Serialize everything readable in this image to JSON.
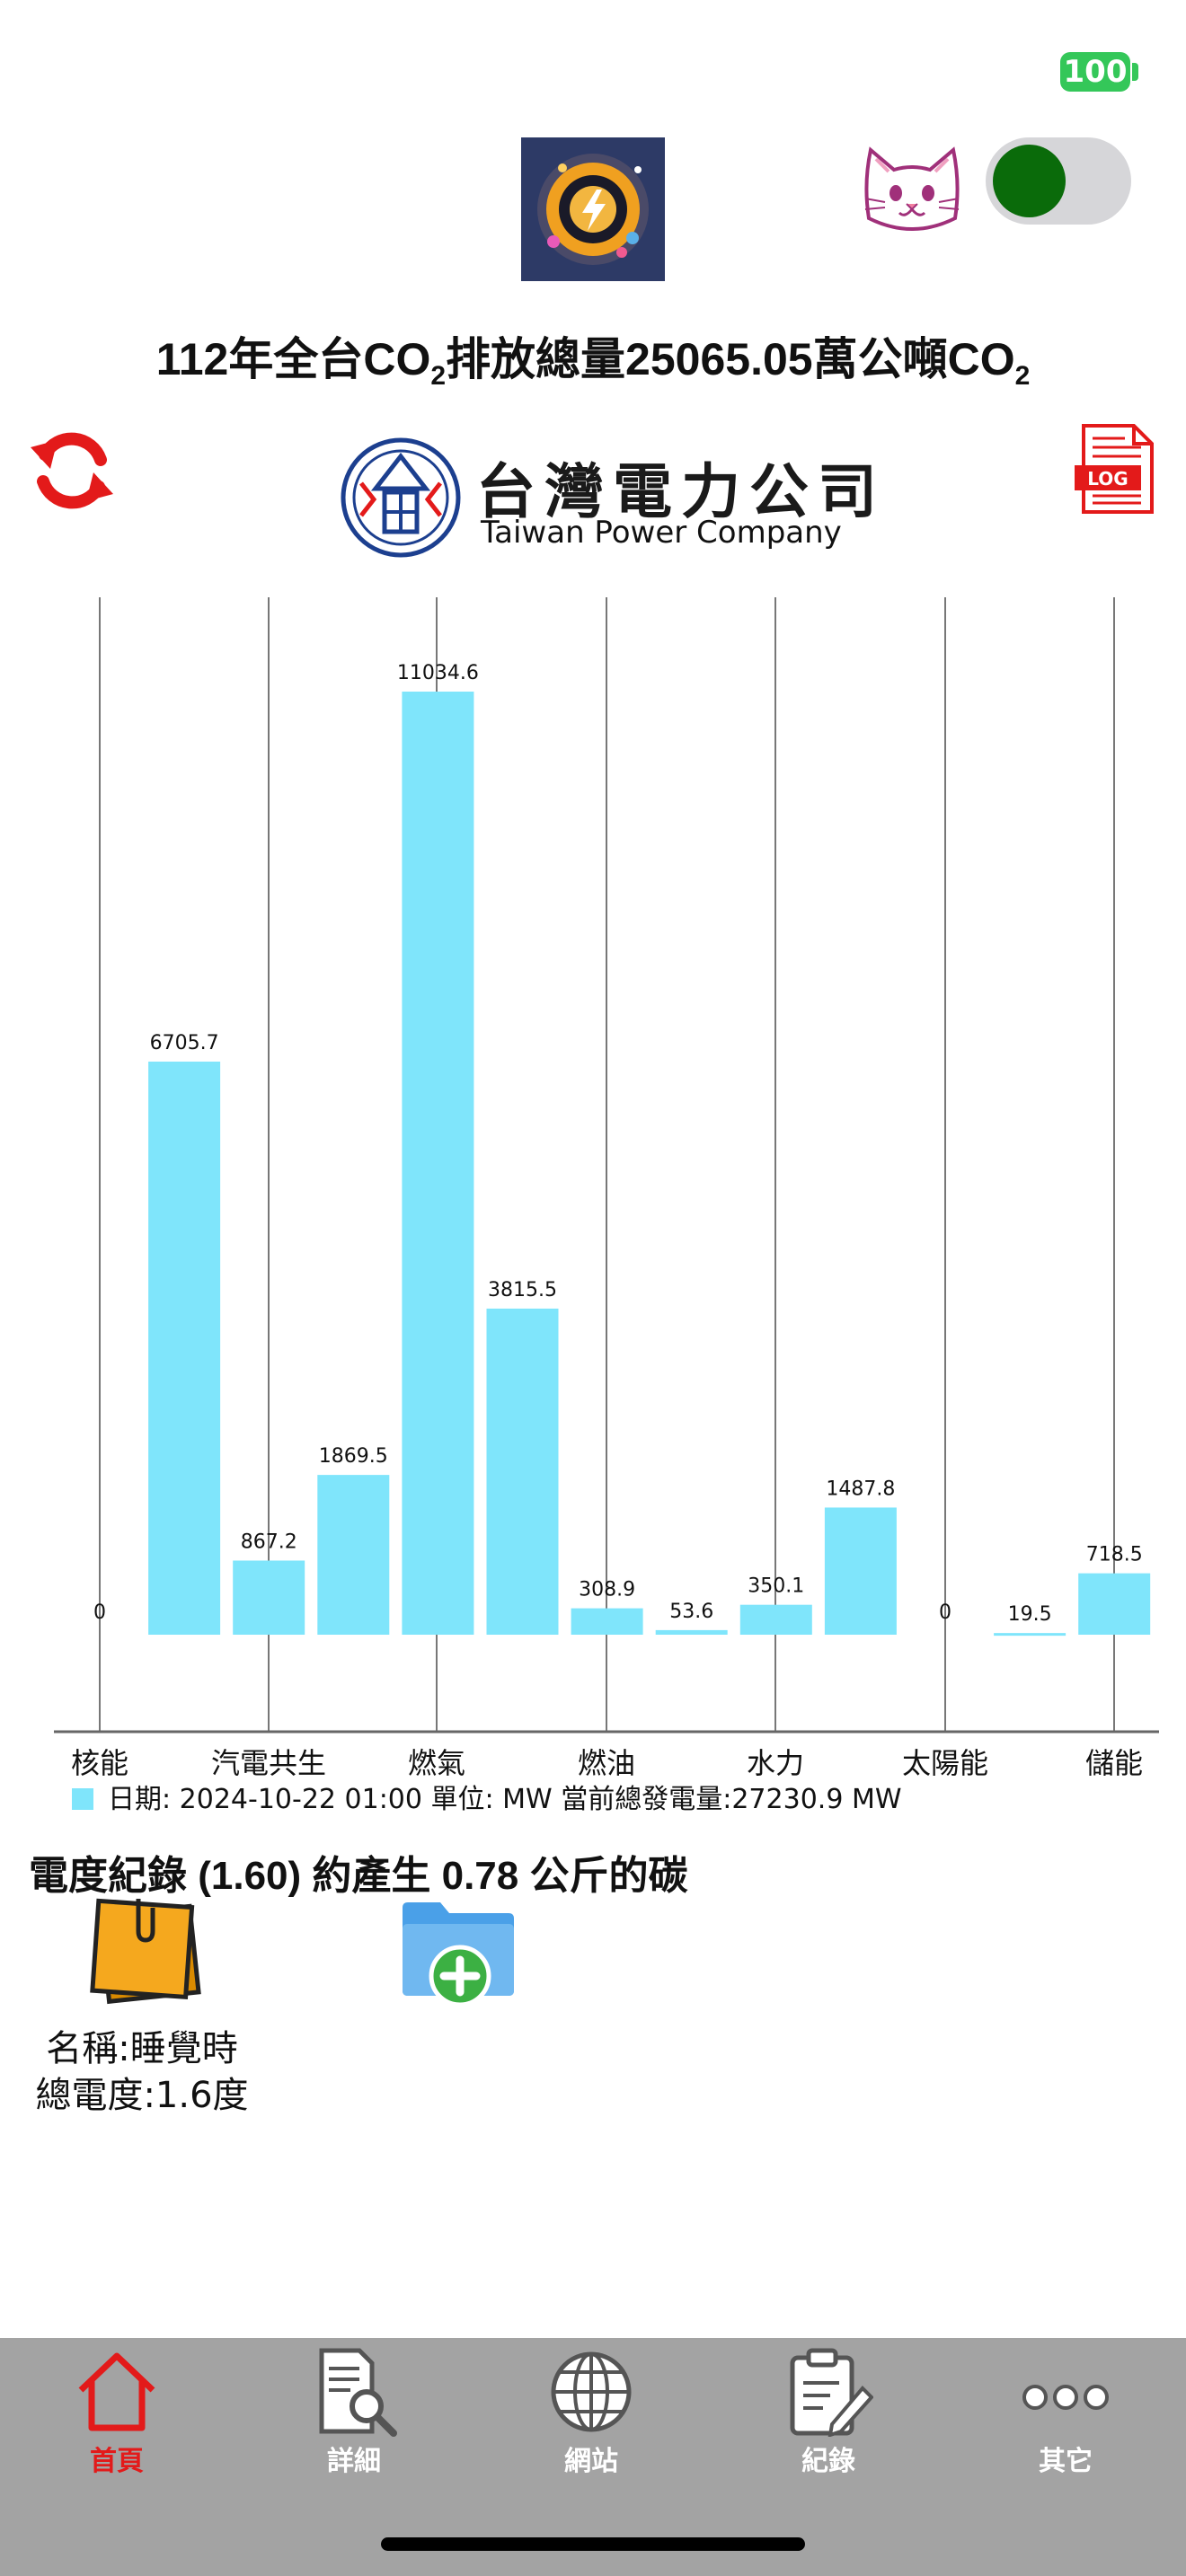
{
  "status": {
    "battery": "100"
  },
  "header": {
    "co2_title_pre": "112年全台CO",
    "co2_sub": "2",
    "co2_title_mid": "排放總量25065.05萬公噸CO",
    "co2_sub2": "2"
  },
  "logo": {
    "chinese": "台灣電力公司",
    "english": "Taiwan Power Company"
  },
  "icons": {
    "app": "app-logo-icon",
    "cat": "cat-face-icon",
    "refresh": "refresh-icon",
    "log": "log-document-icon",
    "note": "sticky-note-icon",
    "folder": "folder-add-icon"
  },
  "toggle": {
    "on": true,
    "knob_color": "#0a6b0a"
  },
  "chart_data": {
    "type": "bar",
    "categories": [
      "核能",
      "汽電共生",
      "燃氣",
      "燃油",
      "水力",
      "太陽能",
      "儲能"
    ],
    "bars": [
      {
        "label": "0",
        "value": 0
      },
      {
        "label": "6705.7",
        "value": 6705.7
      },
      {
        "label": "867.2",
        "value": 867.2
      },
      {
        "label": "1869.5",
        "value": 1869.5
      },
      {
        "label": "11034.6",
        "value": 11034.6
      },
      {
        "label": "3815.5",
        "value": 3815.5
      },
      {
        "label": "308.9",
        "value": 308.9
      },
      {
        "label": "53.6",
        "value": 53.6
      },
      {
        "label": "350.1",
        "value": 350.1
      },
      {
        "label": "1487.8",
        "value": 1487.8
      },
      {
        "label": "0",
        "value": 0
      },
      {
        "label": "19.5",
        "value": 19.5
      },
      {
        "label": "718.5",
        "value": 718.5
      }
    ],
    "bar_color": "#7fe5fb",
    "legend": "日期: 2024-10-22 01:00 單位: MW 當前總發電量:27230.9 MW"
  },
  "records": {
    "title": "電度紀錄 (1.60) 約產生 0.78 公斤的碳",
    "item": {
      "name": "名稱:睡覺時",
      "total": "總電度:1.6度"
    }
  },
  "tabs": [
    {
      "label": "首頁",
      "active": true
    },
    {
      "label": "詳細",
      "active": false
    },
    {
      "label": "網站",
      "active": false
    },
    {
      "label": "紀錄",
      "active": false
    },
    {
      "label": "其它",
      "active": false
    }
  ],
  "colors": {
    "accent_red": "#e31a1a",
    "tabbar": "#a3a3a3",
    "battery": "#34c759"
  }
}
